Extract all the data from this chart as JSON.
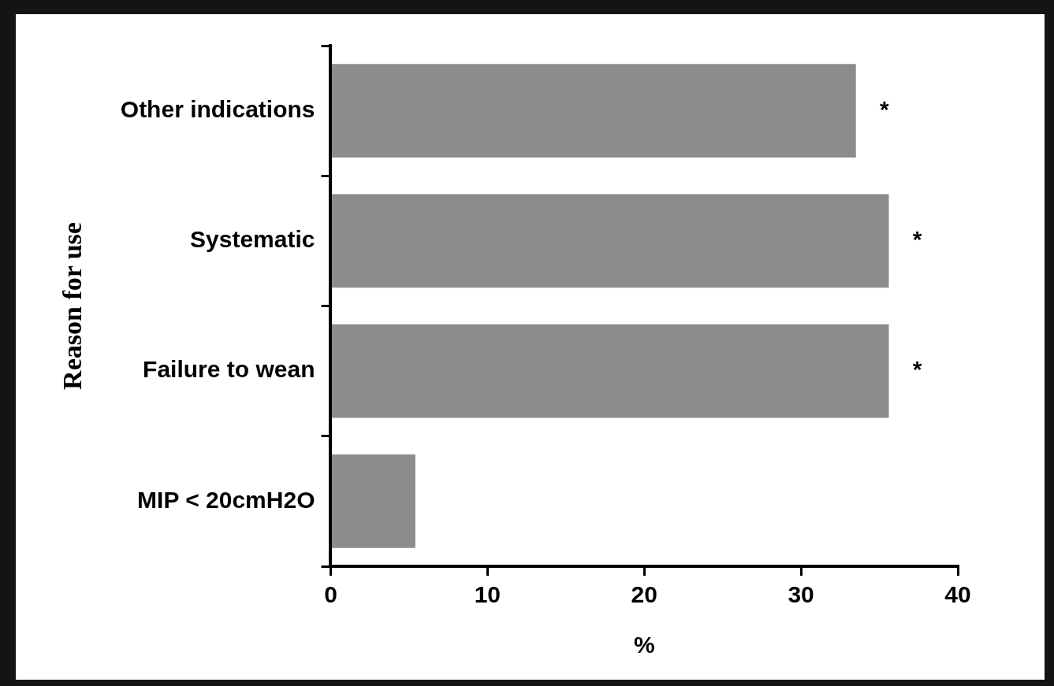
{
  "chart_data": {
    "type": "bar",
    "orientation": "horizontal",
    "xlabel": "%",
    "ylabel": "Reason for use",
    "categories": [
      "Other indications",
      "Systematic",
      "Failure to wean",
      "MIP < 20cmH2O"
    ],
    "values": [
      33.5,
      35.6,
      35.6,
      5.4
    ],
    "color": "#8c8c8c",
    "xlim": [
      0,
      40
    ],
    "xticks": [
      0,
      10,
      20,
      30,
      40
    ],
    "grid": false,
    "legend": false,
    "annotations": [
      "*",
      "*",
      "*"
    ]
  }
}
